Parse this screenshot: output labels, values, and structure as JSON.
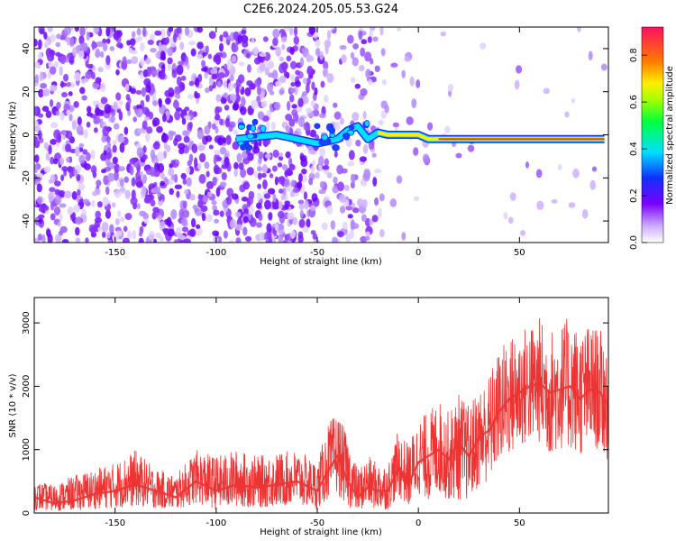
{
  "title": "C2E6.2024.205.05.53.G24",
  "chart_data": [
    {
      "type": "heatmap",
      "xlabel": "Height of straight line (km)",
      "ylabel": "Frequency (Hz)",
      "xlim": [
        -190,
        94
      ],
      "ylim": [
        -50,
        50
      ],
      "x_ticks": [
        -150,
        -100,
        -50,
        0,
        50
      ],
      "y_ticks": [
        -40,
        -20,
        0,
        20,
        40
      ],
      "colorbar": {
        "label": "Normalized spectral amplitude",
        "range": [
          0.0,
          0.92
        ],
        "ticks": [
          0.0,
          0.2,
          0.4,
          0.6,
          0.8
        ],
        "colormap": "rainbow"
      },
      "signal_track": {
        "x": [
          -90,
          -80,
          -70,
          -50,
          -45,
          -40,
          -35,
          -30,
          -25,
          -20,
          -15,
          -10,
          -5,
          0,
          5,
          10,
          20,
          30,
          40,
          50,
          60,
          70,
          80,
          92
        ],
        "y": [
          -2,
          -1,
          0,
          -4,
          -3,
          -2,
          2,
          4,
          -2,
          1,
          0,
          0,
          0,
          0,
          -2,
          -2,
          -2,
          -2,
          -2,
          -2,
          -2,
          -2,
          -2,
          -2
        ]
      }
    },
    {
      "type": "line",
      "xlabel": "Height of straight line (km)",
      "ylabel": "SNR (10 * v/v)",
      "xlim": [
        -190,
        94
      ],
      "ylim": [
        0,
        3400
      ],
      "x_ticks": [
        -150,
        -100,
        -50,
        0,
        50
      ],
      "y_ticks": [
        0,
        1000,
        2000,
        3000
      ],
      "series": [
        {
          "color": "#ee3333",
          "x": [
            -190,
            -180,
            -170,
            -160,
            -150,
            -140,
            -130,
            -120,
            -110,
            -100,
            -90,
            -80,
            -70,
            -60,
            -50,
            -45,
            -40,
            -35,
            -30,
            -25,
            -20,
            -15,
            -10,
            -5,
            0,
            5,
            10,
            15,
            20,
            25,
            30,
            35,
            40,
            45,
            50,
            55,
            60,
            65,
            70,
            75,
            80,
            85,
            90,
            94
          ],
          "y": [
            250,
            150,
            200,
            300,
            350,
            450,
            350,
            250,
            500,
            350,
            450,
            400,
            450,
            500,
            350,
            650,
            900,
            500,
            250,
            400,
            350,
            350,
            700,
            450,
            800,
            900,
            1000,
            850,
            1100,
            900,
            1200,
            1300,
            1600,
            1800,
            1900,
            2000,
            2050,
            1900,
            1950,
            2000,
            1800,
            1950,
            1900,
            1700
          ],
          "env_upper": [
            500,
            450,
            600,
            700,
            800,
            1000,
            700,
            600,
            1000,
            900,
            1000,
            900,
            950,
            1000,
            800,
            1400,
            1600,
            1200,
            700,
            900,
            800,
            800,
            1300,
            1100,
            1500,
            1600,
            1800,
            1600,
            1900,
            1700,
            2000,
            2200,
            2600,
            2800,
            2900,
            3000,
            3100,
            2900,
            3000,
            3100,
            2900,
            3000,
            2900,
            2700
          ],
          "env_lower": [
            50,
            30,
            40,
            60,
            80,
            100,
            80,
            50,
            150,
            60,
            100,
            80,
            100,
            120,
            60,
            200,
            300,
            100,
            30,
            100,
            50,
            50,
            250,
            100,
            300,
            200,
            300,
            200,
            200,
            200,
            400,
            500,
            800,
            900,
            1000,
            1100,
            1100,
            900,
            1000,
            1000,
            900,
            1000,
            1000,
            800
          ]
        }
      ]
    }
  ]
}
